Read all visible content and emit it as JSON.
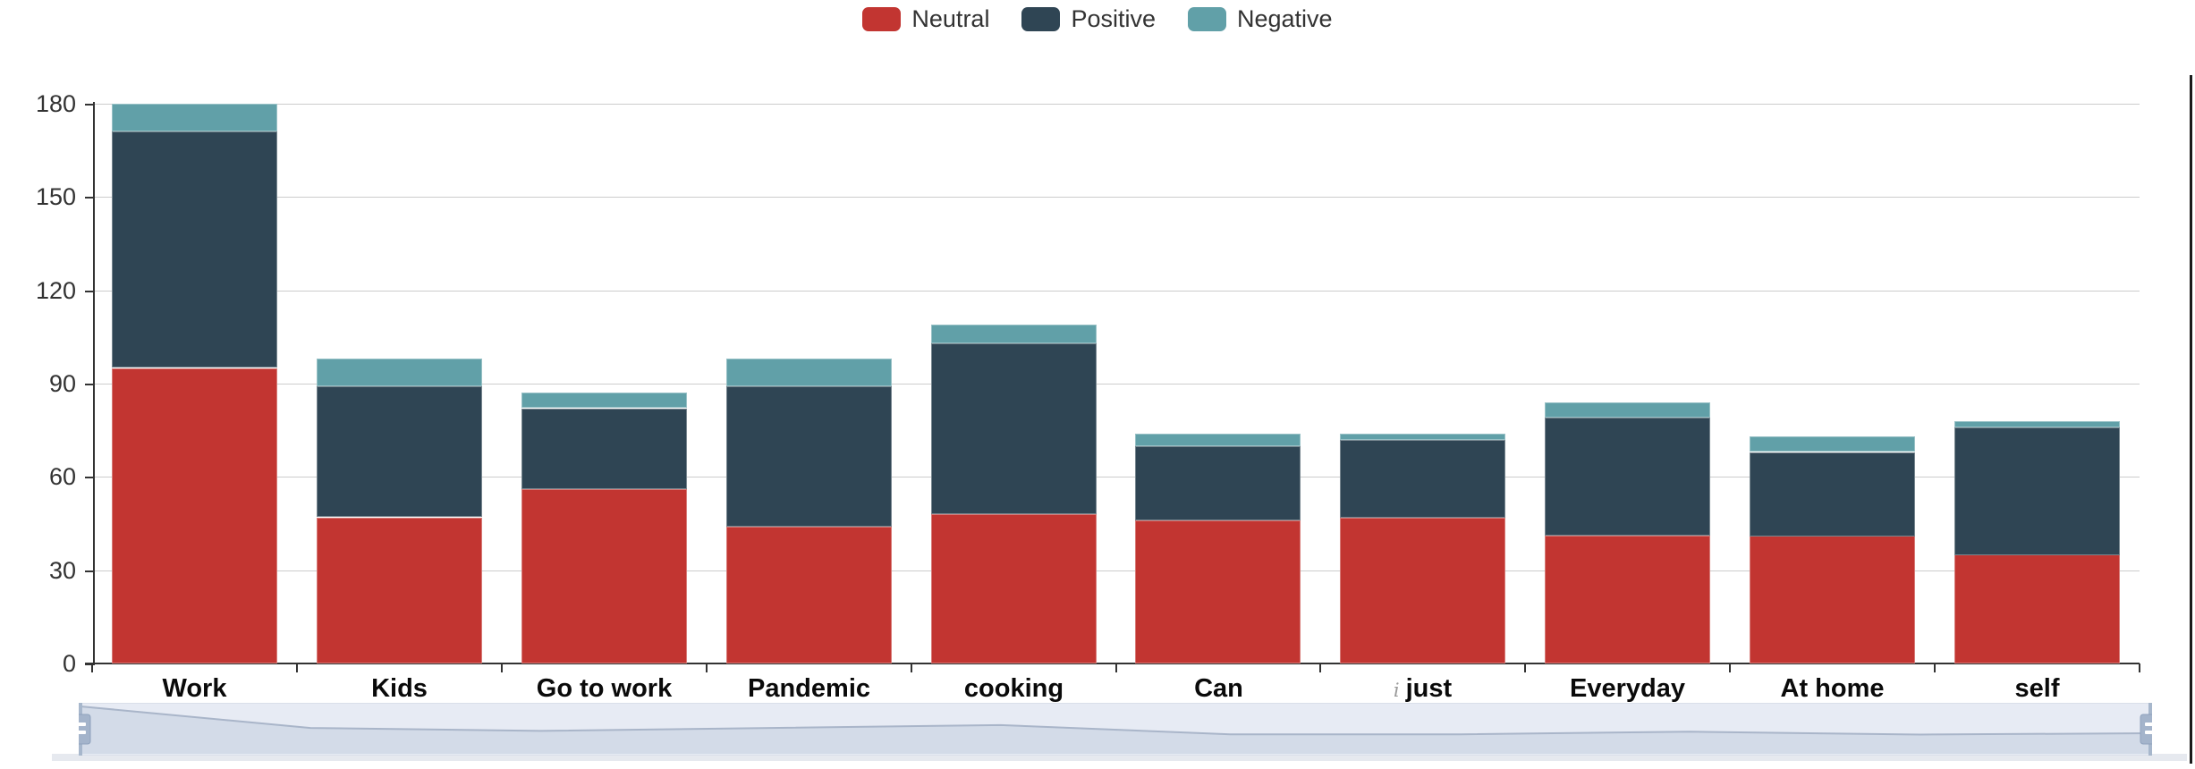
{
  "chart_data": {
    "type": "bar",
    "stacked": true,
    "title": "",
    "xlabel": "",
    "ylabel": "",
    "categories": [
      "Work",
      "Kids",
      "Go to work",
      "Pandemic",
      "cooking",
      "Can",
      "just",
      "Everyday",
      "At home",
      "self"
    ],
    "series": [
      {
        "name": "Neutral",
        "color": "#c23531",
        "values": [
          95,
          47,
          56,
          44,
          48,
          46,
          47,
          41,
          41,
          35
        ]
      },
      {
        "name": "Positive",
        "color": "#2f4554",
        "values": [
          76,
          42,
          26,
          45,
          55,
          24,
          25,
          38,
          27,
          41
        ]
      },
      {
        "name": "Negative",
        "color": "#61a0a8",
        "values": [
          9,
          9,
          5,
          9,
          6,
          4,
          2,
          5,
          5,
          2
        ]
      }
    ],
    "totals": [
      180,
      98,
      87,
      98,
      109,
      74,
      74,
      84,
      73,
      78
    ],
    "ylim": [
      0,
      180
    ],
    "yticks": [
      0,
      30,
      60,
      90,
      120,
      150,
      180
    ],
    "grid": true,
    "legend_position": "top-center"
  },
  "annotations": {
    "category_prefixes": {
      "just": "i"
    }
  },
  "datazoom_slider": {
    "range_start_percent": 0,
    "range_end_percent": 100,
    "shadow_values": [
      180,
      98,
      87,
      98,
      109,
      74,
      74,
      84,
      73,
      78
    ],
    "colors": {
      "background": "#e7ebf4",
      "shadow_line": "#a9b5c9",
      "shadow_fill": "#d3dbe8",
      "handle": "#a4b4cb",
      "handle_grip": "#ffffff",
      "border": "#ccd3df"
    }
  },
  "palette": {
    "grid_line": "#cccccc",
    "axis_line": "#333333",
    "y_label_color": "#333333",
    "x_label_color": "#0a0a0a",
    "right_edge_line": "#1b1b1b"
  }
}
